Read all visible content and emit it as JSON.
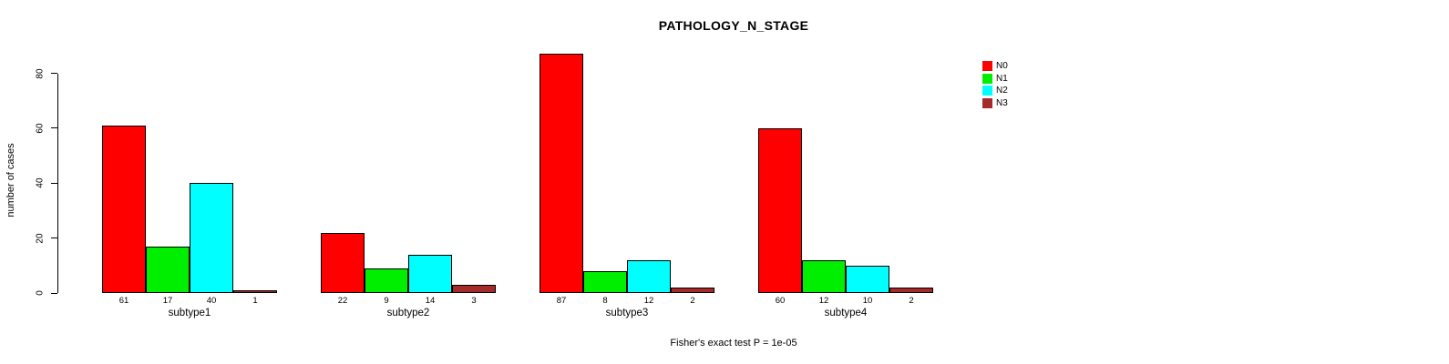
{
  "chart_data": {
    "type": "bar",
    "grouped": true,
    "title": "PATHOLOGY_N_STAGE",
    "xlabel": "",
    "ylabel": "number of cases",
    "categories": [
      "subtype1",
      "subtype2",
      "subtype3",
      "subtype4"
    ],
    "series": [
      {
        "name": "N0",
        "color": "#ff0000",
        "values": [
          61,
          22,
          87,
          60
        ]
      },
      {
        "name": "N1",
        "color": "#00ee00",
        "values": [
          17,
          9,
          8,
          12
        ]
      },
      {
        "name": "N2",
        "color": "#00ffff",
        "values": [
          40,
          14,
          12,
          10
        ]
      },
      {
        "name": "N3",
        "color": "#a52a2a",
        "values": [
          1,
          3,
          2,
          2
        ]
      }
    ],
    "yticks": [
      0,
      20,
      40,
      60,
      80
    ],
    "ylim": [
      0,
      80
    ],
    "grid": false,
    "bar_value_labels_shown": true,
    "legend_position": "top-right",
    "legend_entries": [
      "N0",
      "N1",
      "N2",
      "N3"
    ],
    "annotation": "Fisher's exact test P = 1e-05"
  },
  "colors": {
    "axis": "#000000",
    "background": "#ffffff",
    "bar_border": "#000000"
  }
}
